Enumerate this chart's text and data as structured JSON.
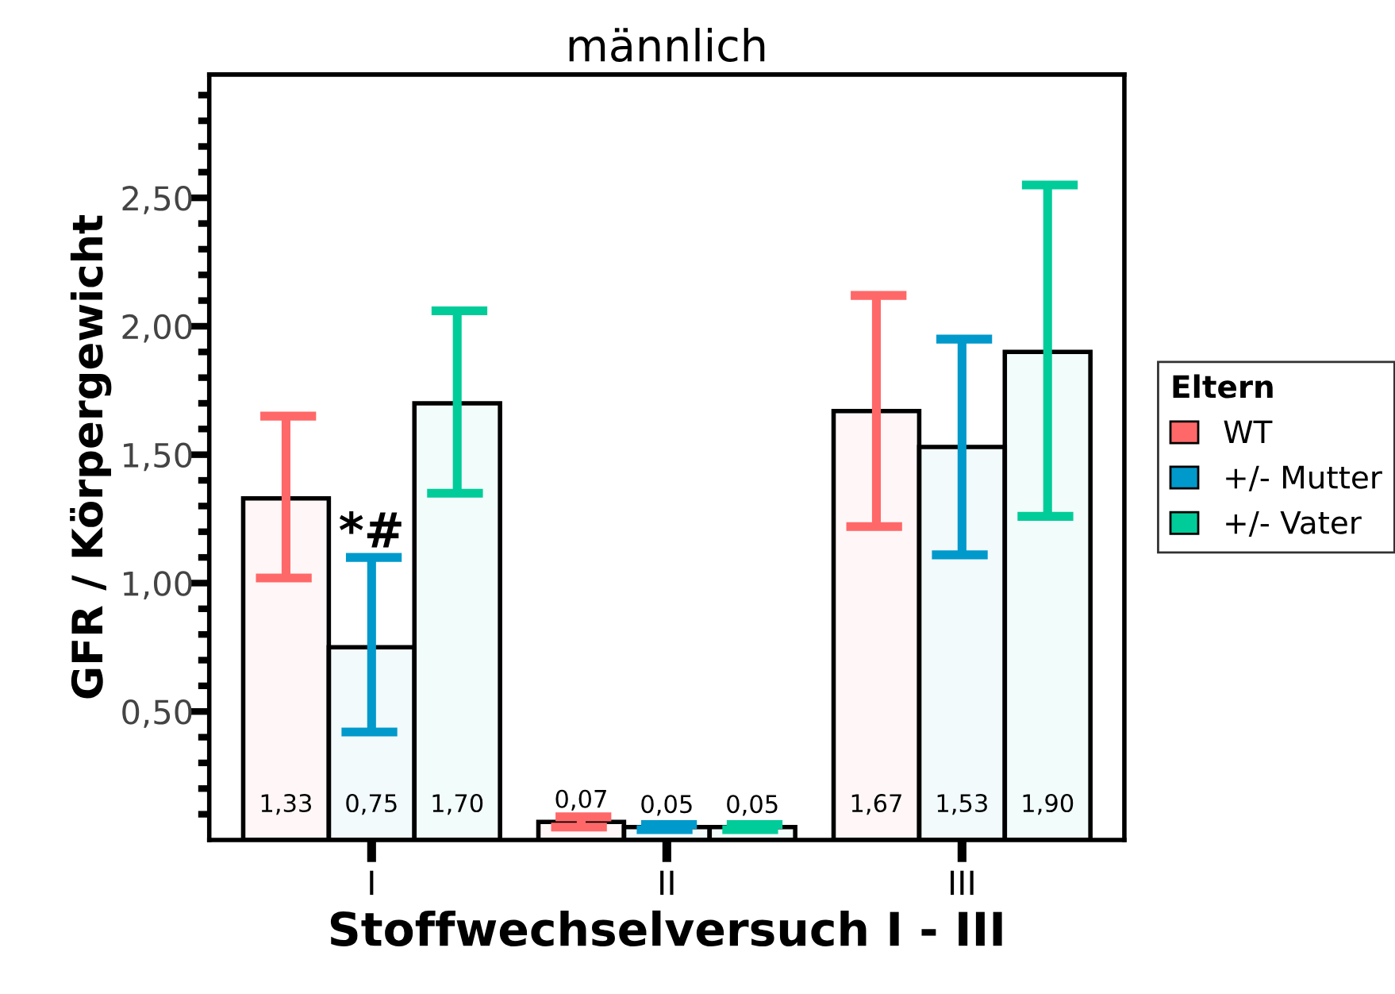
{
  "chart_data": {
    "type": "bar",
    "title": "männlich",
    "xlabel": "Stoffwechselversuch I - III",
    "ylabel": "GFR / Körpergewicht",
    "legend_title": "Eltern",
    "legend": "right",
    "categories": [
      "I",
      "II",
      "III"
    ],
    "series": [
      {
        "name": "WT",
        "color": "#ff6868",
        "values": [
          1.33,
          0.07,
          1.67
        ],
        "value_labels": [
          "1,33",
          "0,07",
          "1,67"
        ],
        "errors": [
          [
            1.02,
            1.65
          ],
          [
            0.05,
            0.09
          ],
          [
            1.22,
            2.12
          ]
        ]
      },
      {
        "name": "+/- Mutter",
        "color": "#0099cc",
        "values": [
          0.75,
          0.05,
          1.53
        ],
        "value_labels": [
          "0,75",
          "0,05",
          "1,53"
        ],
        "errors": [
          [
            0.42,
            1.1
          ],
          [
            0.04,
            0.06
          ],
          [
            1.11,
            1.95
          ]
        ]
      },
      {
        "name": "+/- Vater",
        "color": "#00cc99",
        "values": [
          1.7,
          0.05,
          1.9
        ],
        "value_labels": [
          "1,70",
          "0,05",
          "1,90"
        ],
        "errors": [
          [
            1.35,
            2.06
          ],
          [
            0.04,
            0.06
          ],
          [
            1.26,
            2.55
          ]
        ]
      }
    ],
    "annotations": [
      {
        "text": "*#",
        "x": "I",
        "y": 1.1
      }
    ],
    "ylim": [
      0,
      2.98
    ],
    "yticks": [
      {
        "value": 0.1,
        "label": null
      },
      {
        "value": 0.2,
        "label": null
      },
      {
        "value": 0.3,
        "label": null
      },
      {
        "value": 0.4,
        "label": null
      },
      {
        "value": 0.5,
        "label": "0,50"
      },
      {
        "value": 0.6,
        "label": null
      },
      {
        "value": 0.7,
        "label": null
      },
      {
        "value": 0.8,
        "label": null
      },
      {
        "value": 0.9,
        "label": null
      },
      {
        "value": 1.0,
        "label": "1,00"
      },
      {
        "value": 1.1,
        "label": null
      },
      {
        "value": 1.2,
        "label": null
      },
      {
        "value": 1.3,
        "label": null
      },
      {
        "value": 1.4,
        "label": null
      },
      {
        "value": 1.5,
        "label": "1,50"
      },
      {
        "value": 1.6,
        "label": null
      },
      {
        "value": 1.7,
        "label": null
      },
      {
        "value": 1.8,
        "label": null
      },
      {
        "value": 1.9,
        "label": null
      },
      {
        "value": 2.0,
        "label": "2,00"
      },
      {
        "value": 2.1,
        "label": null
      },
      {
        "value": 2.2,
        "label": null
      },
      {
        "value": 2.3,
        "label": null
      },
      {
        "value": 2.4,
        "label": null
      },
      {
        "value": 2.5,
        "label": "2,50"
      },
      {
        "value": 2.6,
        "label": null
      },
      {
        "value": 2.7,
        "label": null
      },
      {
        "value": 2.8,
        "label": null
      },
      {
        "value": 2.9,
        "label": null
      }
    ],
    "grid": false
  }
}
